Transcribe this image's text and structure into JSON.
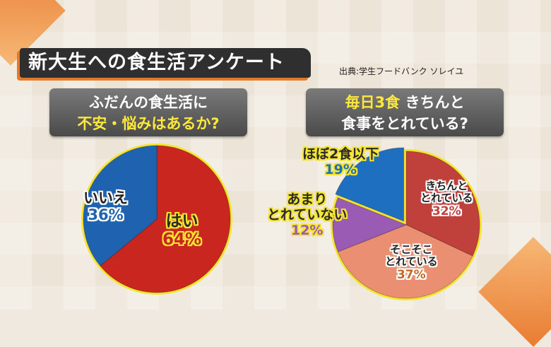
{
  "title": "新大生への食生活アンケート",
  "source": "出典:学生フードバンク ソレイユ",
  "chart_data": [
    {
      "type": "pie",
      "question_line1": "ふだんの食生活に",
      "question_line2": "不安・悩みはあるか?",
      "categories": [
        "はい",
        "いいえ"
      ],
      "values": [
        64,
        36
      ],
      "value_labels": [
        "64%",
        "36%"
      ],
      "colors": [
        "#c8261e",
        "#1f63b0"
      ]
    },
    {
      "type": "pie",
      "question_highlight": "毎日3食",
      "question_line1_rest": " きちんと",
      "question_line2": "食事をとれている?",
      "categories": [
        "きちんと とれている",
        "そこそこ とれている",
        "あまり とれていない",
        "ほぼ2食以下"
      ],
      "label_lines": [
        [
          "きちんと",
          "とれている"
        ],
        [
          "そこそこ",
          "とれている"
        ],
        [
          "あまり",
          "とれていない"
        ],
        [
          "ほぼ2食以下"
        ]
      ],
      "values": [
        32,
        37,
        12,
        19
      ],
      "value_labels": [
        "32%",
        "37%",
        "12%",
        "19%"
      ],
      "colors": [
        "#c0403c",
        "#ea8f72",
        "#9a5bb5",
        "#1f6fc0"
      ]
    }
  ]
}
